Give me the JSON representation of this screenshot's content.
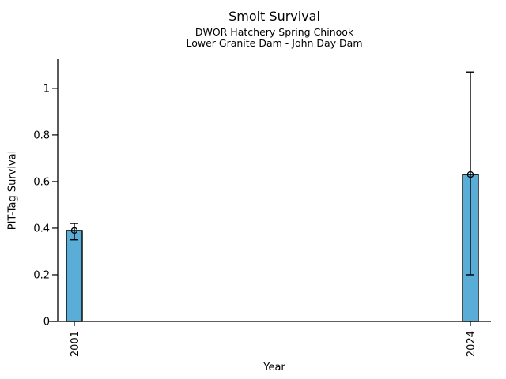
{
  "chart_data": {
    "type": "bar",
    "title": "Smolt Survival",
    "subtitle1": "DWOR Hatchery Spring Chinook",
    "subtitle2": "Lower Granite Dam - John Day Dam",
    "xlabel": "Year",
    "ylabel": "PIT-Tag Survival",
    "categories": [
      "2001",
      "2024"
    ],
    "values": [
      0.39,
      0.63
    ],
    "error_low": [
      0.35,
      0.2
    ],
    "error_high": [
      0.42,
      1.07
    ],
    "ytick_values": [
      0,
      0.2,
      0.4,
      0.6,
      0.8,
      1
    ],
    "ytick_labels": [
      "0",
      "0.2",
      "0.4",
      "0.6",
      "0.8",
      "1"
    ],
    "ylim": [
      0,
      1.125
    ],
    "grid": false,
    "legend": "none",
    "marker": "open-circle",
    "bar_color": "#5aadd6",
    "bar_edge_color": "#000000",
    "error_color": "#000000",
    "axis_color": "#000000",
    "text_color": "#000000",
    "background_color": "#ffffff"
  }
}
